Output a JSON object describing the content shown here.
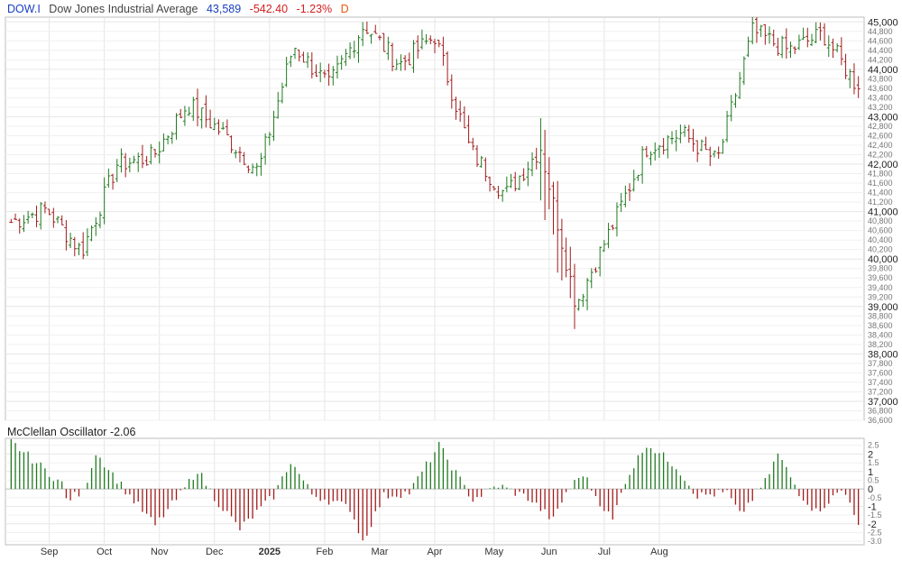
{
  "header": {
    "symbol": "DOW.I",
    "name": "Dow Jones Industrial Average",
    "price": "43,589",
    "change": "-542.40",
    "change_pct": "-1.23%",
    "flag": "D"
  },
  "colors": {
    "up": "#1f7a1f",
    "down": "#a11b1b",
    "grid": "#e6e6e6",
    "border": "#bcbcbc",
    "symbol": "#1a3fbf",
    "negative": "#d42020"
  },
  "chart_data": [
    {
      "type": "ohlc",
      "title": "Dow Jones Industrial Average",
      "ylim": [
        36600,
        45100
      ],
      "y_major_ticks": [
        "45,000",
        "44,000",
        "43,000",
        "42,000",
        "41,000",
        "40,000",
        "39,000",
        "38,000",
        "37,000"
      ],
      "y_minor_ticks": [
        "44,800",
        "44,600",
        "44,400",
        "44,200",
        "43,800",
        "43,600",
        "43,400",
        "43,200",
        "42,800",
        "42,600",
        "42,400",
        "42,200",
        "41,800",
        "41,600",
        "41,400",
        "41,200",
        "40,800",
        "40,600",
        "40,400",
        "40,200",
        "39,800",
        "39,600",
        "39,400",
        "39,200",
        "38,800",
        "38,600",
        "38,400",
        "38,200",
        "37,800",
        "37,600",
        "37,400",
        "37,200",
        "36,800",
        "36,600"
      ],
      "x_labels": [
        "Sep",
        "Oct",
        "Nov",
        "Dec",
        "2025",
        "Feb",
        "Mar",
        "Apr",
        "May",
        "Jun",
        "Jul",
        "Aug"
      ],
      "anchors": [
        [
          40850,
          40700
        ],
        [
          40900,
          41200
        ],
        [
          40300,
          40000
        ],
        [
          41800,
          42200
        ],
        [
          42300,
          42000
        ],
        [
          43250,
          43300
        ],
        [
          42800,
          42500
        ],
        [
          41800,
          41900
        ],
        [
          44200,
          44800
        ],
        [
          43800,
          43500
        ],
        [
          45000,
          44900
        ],
        [
          44600,
          43600
        ],
        [
          44900,
          44500
        ],
        [
          42600,
          42000
        ],
        [
          41500,
          41200
        ],
        [
          42500,
          42200
        ],
        [
          39700,
          38400
        ],
        [
          40500,
          40800
        ],
        [
          42300,
          42400
        ],
        [
          42500,
          42800
        ],
        [
          42100,
          42000
        ],
        [
          44700,
          44900
        ],
        [
          44500,
          44300
        ],
        [
          44900,
          44600
        ],
        [
          43600,
          43600
        ]
      ],
      "grid": true
    },
    {
      "type": "bar",
      "title": "McClellan Oscillator",
      "value_label": "-2.06",
      "ylim": [
        -3.2,
        2.9
      ],
      "y_major_ticks": [
        "2",
        "1",
        "0",
        "-1",
        "-2"
      ],
      "y_minor_ticks": [
        "2.5",
        "1.5",
        "0.5",
        "-0.5",
        "-1.5",
        "-2.5",
        "-3.0"
      ],
      "anchors": [
        [
          0,
          2.7
        ],
        [
          12,
          0.3
        ],
        [
          13,
          -0.6
        ],
        [
          17,
          -0.2
        ],
        [
          20,
          2.1
        ],
        [
          28,
          -0.4
        ],
        [
          34,
          -2.1
        ],
        [
          40,
          -0.3
        ],
        [
          44,
          1.1
        ],
        [
          48,
          -0.5
        ],
        [
          54,
          -2.3
        ],
        [
          62,
          -0.4
        ],
        [
          66,
          1.6
        ],
        [
          71,
          -0.3
        ],
        [
          80,
          -1.1
        ],
        [
          83,
          -3.0
        ],
        [
          88,
          -0.4
        ],
        [
          94,
          -0.2
        ],
        [
          101,
          2.5
        ],
        [
          107,
          0.1
        ],
        [
          109,
          -0.6
        ],
        [
          115,
          0.2
        ],
        [
          122,
          -0.5
        ],
        [
          128,
          -1.8
        ],
        [
          131,
          -0.2
        ],
        [
          135,
          0.9
        ],
        [
          138,
          -0.4
        ],
        [
          142,
          -1.8
        ],
        [
          145,
          0.5
        ],
        [
          150,
          2.6
        ],
        [
          157,
          1.3
        ],
        [
          162,
          -0.4
        ],
        [
          169,
          -0.2
        ],
        [
          172,
          -1.5
        ],
        [
          178,
          0.4
        ],
        [
          181,
          2.0
        ],
        [
          186,
          -0.2
        ],
        [
          190,
          -1.3
        ],
        [
          194,
          -0.5
        ],
        [
          196,
          -0.1
        ],
        [
          198,
          -0.6
        ],
        [
          200,
          -2.06
        ]
      ]
    }
  ]
}
